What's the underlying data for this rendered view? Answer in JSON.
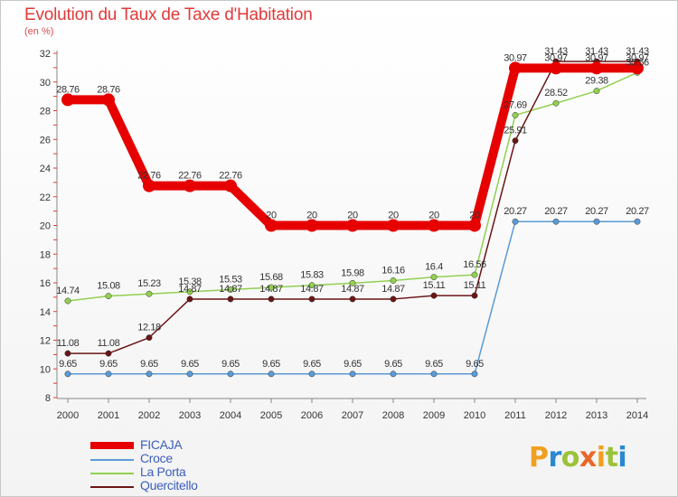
{
  "header": {
    "title": "Evolution du Taux de Taxe d'Habitation",
    "subtitle": "(en %)"
  },
  "branding": {
    "logo_text": "Proxiti",
    "letter_colors": [
      "#f0a020",
      "#2a88d0",
      "#9cc23a",
      "#e8682a",
      "#f0a020",
      "#9cc23a",
      "#2a88d0"
    ]
  },
  "chart_data": {
    "type": "line",
    "title": "Evolution du Taux de Taxe d'Habitation",
    "ylabel": "(en %)",
    "xlabel": "",
    "x": [
      "2000",
      "2001",
      "2002",
      "2003",
      "2004",
      "2005",
      "2006",
      "2007",
      "2008",
      "2009",
      "2010",
      "2011",
      "2012",
      "2013",
      "2014"
    ],
    "ylim": [
      8,
      32
    ],
    "yticks": [
      8,
      10,
      12,
      14,
      16,
      18,
      20,
      22,
      24,
      26,
      28,
      30,
      32
    ],
    "grid": false,
    "legend_position": "bottom-left",
    "series": [
      {
        "name": "FICAJA",
        "color": "#e60000",
        "values": [
          28.76,
          28.76,
          22.76,
          22.76,
          22.76,
          20,
          20,
          20,
          20,
          20,
          20,
          30.97,
          30.97,
          30.97,
          30.97
        ],
        "labels": [
          "28.76",
          "28.76",
          "22.76",
          "22.76",
          "22.76",
          "20",
          "20",
          "20",
          "20",
          "20",
          "20",
          "30.97",
          "30.97",
          "30.97",
          "30.97"
        ]
      },
      {
        "name": "Croce",
        "color": "#5b9bd5",
        "values": [
          9.65,
          9.65,
          9.65,
          9.65,
          9.65,
          9.65,
          9.65,
          9.65,
          9.65,
          9.65,
          9.65,
          20.27,
          20.27,
          20.27,
          20.27
        ],
        "labels": [
          "9.65",
          "9.65",
          "9.65",
          "9.65",
          "9.65",
          "9.65",
          "9.65",
          "9.65",
          "9.65",
          "9.65",
          "9.65",
          "20.27",
          "20.27",
          "20.27",
          "20.27"
        ]
      },
      {
        "name": "La Porta",
        "color": "#92d050",
        "values": [
          14.74,
          15.08,
          15.23,
          15.38,
          15.53,
          15.68,
          15.83,
          15.98,
          16.16,
          16.4,
          16.56,
          27.69,
          28.52,
          29.38,
          30.66
        ],
        "labels": [
          "14.74",
          "15.08",
          "15.23",
          "15.38",
          "15.53",
          "15.68",
          "15.83",
          "15.98",
          "16.16",
          "16.4",
          "16.56",
          "27.69",
          "28.52",
          "29.38",
          "30.66"
        ]
      },
      {
        "name": "Quercitello",
        "color": "#6b1515",
        "values": [
          11.08,
          11.08,
          12.18,
          14.87,
          14.87,
          14.87,
          14.87,
          14.87,
          14.87,
          15.11,
          15.11,
          25.91,
          31.43,
          31.43,
          31.43
        ],
        "labels": [
          "11.08",
          "11.08",
          "12.18",
          "14.87",
          "14.87",
          "14.87",
          "14.87",
          "14.87",
          "14.87",
          "15.11",
          "15.11",
          "25.91",
          "31.43",
          "31.43",
          "31.43"
        ]
      }
    ]
  }
}
